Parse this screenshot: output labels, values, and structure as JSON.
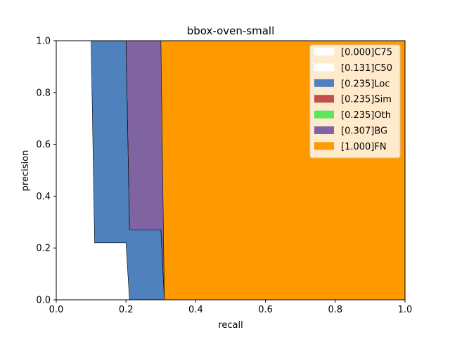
{
  "chart_data": {
    "type": "area",
    "title": "bbox-oven-small",
    "xlabel": "recall",
    "ylabel": "precision",
    "xlim": [
      0,
      1
    ],
    "ylim": [
      0,
      1
    ],
    "xticks": [
      "0.0",
      "0.2",
      "0.4",
      "0.6",
      "0.8",
      "1.0"
    ],
    "yticks": [
      "0.0",
      "0.2",
      "0.4",
      "0.6",
      "0.8",
      "1.0"
    ],
    "grid": false,
    "legend_position": "top-right",
    "series": [
      {
        "name": "[0.000]C75",
        "color": "#ffffff",
        "boundary": []
      },
      {
        "name": "[0.131]C50",
        "color": "#ffffff",
        "boundary": [
          [
            0.0,
            1.0
          ],
          [
            0.1,
            1.0
          ],
          [
            0.11,
            0.22
          ],
          [
            0.2,
            0.22
          ],
          [
            0.21,
            0.0
          ]
        ]
      },
      {
        "name": "[0.235]Loc",
        "color": "#4f81bd",
        "boundary": [
          [
            0.0,
            1.0
          ],
          [
            0.2,
            1.0
          ],
          [
            0.21,
            0.27
          ],
          [
            0.3,
            0.27
          ],
          [
            0.31,
            0.0
          ]
        ]
      },
      {
        "name": "[0.235]Sim",
        "color": "#c0504d",
        "boundary": [
          [
            0.0,
            1.0
          ],
          [
            0.2,
            1.0
          ],
          [
            0.21,
            0.27
          ],
          [
            0.3,
            0.27
          ],
          [
            0.31,
            0.0
          ]
        ]
      },
      {
        "name": "[0.235]Oth",
        "color": "#5ce65c",
        "boundary": [
          [
            0.0,
            1.0
          ],
          [
            0.2,
            1.0
          ],
          [
            0.21,
            0.27
          ],
          [
            0.3,
            0.27
          ],
          [
            0.31,
            0.0
          ]
        ]
      },
      {
        "name": "[0.307]BG",
        "color": "#8064a2",
        "boundary": [
          [
            0.0,
            1.0
          ],
          [
            0.3,
            1.0
          ],
          [
            0.31,
            0.0
          ]
        ]
      },
      {
        "name": "[1.000]FN",
        "color": "#ff9900",
        "boundary": [
          [
            0.0,
            1.0
          ],
          [
            1.0,
            1.0
          ],
          [
            1.0,
            0.0
          ]
        ]
      }
    ]
  }
}
